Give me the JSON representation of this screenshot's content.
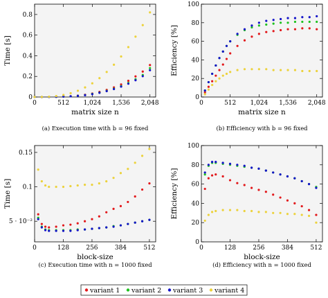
{
  "chart_data": [
    {
      "id": "a",
      "type": "scatter",
      "caption": "(a) Execution time with b = 96 fixed",
      "xlabel": "matrix size n",
      "ylabel": "Time [s]",
      "xlim": [
        0,
        2150
      ],
      "ylim": [
        0,
        0.9
      ],
      "xticks": [
        0,
        512,
        1024,
        1536,
        2048
      ],
      "xtick_labels": [
        "0",
        "512",
        "1,024",
        "1,536",
        "2,048"
      ],
      "yticks": [
        0,
        0.2,
        0.4,
        0.6,
        0.8
      ],
      "ytick_labels": [
        "0",
        "0.2",
        "0.4",
        "0.6",
        "0.8"
      ],
      "grid": false,
      "series": [
        {
          "name": "variant 1",
          "x": [
            0,
            128,
            256,
            384,
            512,
            640,
            768,
            896,
            1024,
            1152,
            1280,
            1408,
            1536,
            1664,
            1792,
            1920,
            2048
          ],
          "y": [
            0,
            0,
            0.001,
            0.002,
            0.004,
            0.008,
            0.014,
            0.022,
            0.034,
            0.05,
            0.069,
            0.093,
            0.122,
            0.157,
            0.2,
            0.247,
            0.31
          ]
        },
        {
          "name": "variant 2",
          "x": [
            0,
            128,
            256,
            384,
            512,
            640,
            768,
            896,
            1024,
            1152,
            1280,
            1408,
            1536,
            1664,
            1792,
            1920,
            2048
          ],
          "y": [
            0,
            0,
            0.001,
            0.002,
            0.004,
            0.007,
            0.012,
            0.019,
            0.03,
            0.043,
            0.06,
            0.081,
            0.106,
            0.136,
            0.172,
            0.213,
            0.28
          ]
        },
        {
          "name": "variant 3",
          "x": [
            0,
            128,
            256,
            384,
            512,
            640,
            768,
            896,
            1024,
            1152,
            1280,
            1408,
            1536,
            1664,
            1792,
            1920,
            2048
          ],
          "y": [
            0,
            0,
            0.001,
            0.002,
            0.004,
            0.007,
            0.011,
            0.018,
            0.028,
            0.041,
            0.057,
            0.077,
            0.101,
            0.129,
            0.163,
            0.202,
            0.26
          ]
        },
        {
          "name": "variant 4",
          "x": [
            0,
            128,
            256,
            384,
            512,
            640,
            768,
            896,
            1024,
            1152,
            1280,
            1408,
            1536,
            1664,
            1792,
            1920,
            2048
          ],
          "y": [
            0,
            0.001,
            0.003,
            0.009,
            0.02,
            0.037,
            0.061,
            0.093,
            0.133,
            0.183,
            0.243,
            0.313,
            0.393,
            0.484,
            0.585,
            0.697,
            0.82
          ]
        }
      ]
    },
    {
      "id": "b",
      "type": "scatter",
      "caption": "(b) Efficiency with b = 96 fixed",
      "xlabel": "matrix size n",
      "ylabel": "Efficiency [%]",
      "xlim": [
        0,
        2150
      ],
      "ylim": [
        0,
        100
      ],
      "xticks": [
        0,
        512,
        1024,
        1536,
        2048
      ],
      "xtick_labels": [
        "0",
        "512",
        "1,024",
        "1,536",
        "2,048"
      ],
      "yticks": [
        0,
        20,
        40,
        60,
        80,
        100
      ],
      "ytick_labels": [
        "0",
        "20",
        "40",
        "60",
        "80",
        "100"
      ],
      "grid": false,
      "series": [
        {
          "name": "variant 1",
          "x": [
            64,
            128,
            192,
            256,
            320,
            384,
            448,
            512,
            640,
            768,
            896,
            1024,
            1152,
            1280,
            1408,
            1536,
            1664,
            1792,
            1920,
            2048
          ],
          "y": [
            5,
            11,
            17,
            23,
            29,
            35,
            41,
            47,
            55,
            61,
            65,
            68,
            70,
            71,
            72,
            73,
            73,
            74,
            74,
            73
          ]
        },
        {
          "name": "variant 2",
          "x": [
            64,
            128,
            192,
            256,
            320,
            384,
            448,
            512,
            640,
            768,
            896,
            1024,
            1152,
            1280,
            1408,
            1536,
            1664,
            1792,
            1920,
            2048
          ],
          "y": [
            7,
            16,
            25,
            34,
            42,
            49,
            55,
            60,
            67,
            72,
            75,
            77,
            78,
            79,
            80,
            80,
            81,
            81,
            81,
            81
          ]
        },
        {
          "name": "variant 3",
          "x": [
            64,
            128,
            192,
            256,
            320,
            384,
            448,
            512,
            640,
            768,
            896,
            1024,
            1152,
            1280,
            1408,
            1536,
            1664,
            1792,
            1920,
            2048
          ],
          "y": [
            7,
            16,
            25,
            34,
            42,
            49,
            55,
            60,
            68,
            73,
            77,
            80,
            82,
            83,
            84,
            85,
            85,
            86,
            86,
            87
          ]
        },
        {
          "name": "variant 4",
          "x": [
            64,
            128,
            192,
            256,
            320,
            384,
            448,
            512,
            640,
            768,
            896,
            1024,
            1152,
            1280,
            1408,
            1536,
            1664,
            1792,
            1920,
            2048
          ],
          "y": [
            3,
            8,
            13,
            17,
            20,
            23,
            25,
            27,
            29,
            30,
            30,
            30,
            30,
            29,
            29,
            29,
            29,
            28,
            28,
            28
          ]
        }
      ]
    },
    {
      "id": "c",
      "type": "scatter",
      "caption": "(c) Execution time with n = 1000 fixed",
      "xlabel": "block-size",
      "ylabel": "Time [s]",
      "xlim": [
        0,
        540
      ],
      "ylim": [
        0.02,
        0.16
      ],
      "xticks": [
        0,
        128,
        256,
        384,
        512
      ],
      "xtick_labels": [
        "0",
        "128",
        "256",
        "384",
        "512"
      ],
      "yticks": [
        0.05,
        0.1,
        0.15
      ],
      "ytick_labels": [
        "5 · 10⁻²",
        "0.1",
        "0.15"
      ],
      "grid": false,
      "series": [
        {
          "name": "variant 1",
          "x": [
            16,
            32,
            48,
            64,
            96,
            128,
            160,
            192,
            224,
            256,
            288,
            320,
            352,
            384,
            416,
            448,
            480,
            512
          ],
          "y": [
            0.06,
            0.046,
            0.042,
            0.041,
            0.042,
            0.044,
            0.045,
            0.047,
            0.05,
            0.053,
            0.057,
            0.063,
            0.068,
            0.072,
            0.078,
            0.086,
            0.096,
            0.105
          ]
        },
        {
          "name": "variant 2",
          "x": [
            16,
            32,
            48,
            64,
            96,
            128,
            160,
            192,
            224,
            256,
            288,
            320,
            352,
            384,
            416,
            448,
            480,
            512
          ],
          "y": [
            0.055,
            0.042,
            0.038,
            0.037,
            0.037,
            0.037,
            0.037,
            0.038,
            0.038,
            0.039,
            0.04,
            0.041,
            0.043,
            0.044,
            0.046,
            0.048,
            0.05,
            0.052
          ]
        },
        {
          "name": "variant 3",
          "x": [
            16,
            32,
            48,
            64,
            96,
            128,
            160,
            192,
            224,
            256,
            288,
            320,
            352,
            384,
            416,
            448,
            480,
            512
          ],
          "y": [
            0.053,
            0.041,
            0.037,
            0.036,
            0.036,
            0.036,
            0.036,
            0.037,
            0.038,
            0.039,
            0.04,
            0.041,
            0.042,
            0.044,
            0.046,
            0.048,
            0.05,
            0.052
          ]
        },
        {
          "name": "variant 4",
          "x": [
            16,
            32,
            48,
            64,
            96,
            128,
            160,
            192,
            224,
            256,
            288,
            320,
            352,
            384,
            416,
            448,
            480,
            512
          ],
          "y": [
            0.125,
            0.108,
            0.102,
            0.1,
            0.1,
            0.1,
            0.101,
            0.102,
            0.103,
            0.103,
            0.105,
            0.108,
            0.113,
            0.12,
            0.126,
            0.135,
            0.145,
            0.155
          ]
        }
      ]
    },
    {
      "id": "d",
      "type": "scatter",
      "caption": "(d) Efficiency with n = 1000 fixed",
      "xlabel": "block-size",
      "ylabel": "Efficiency [%]",
      "xlim": [
        0,
        540
      ],
      "ylim": [
        0,
        100
      ],
      "xticks": [
        0,
        128,
        256,
        384,
        512
      ],
      "xtick_labels": [
        "0",
        "128",
        "256",
        "384",
        "512"
      ],
      "yticks": [
        0,
        20,
        40,
        60,
        80,
        100
      ],
      "ytick_labels": [
        "0",
        "20",
        "40",
        "60",
        "80",
        "100"
      ],
      "grid": false,
      "series": [
        {
          "name": "variant 1",
          "x": [
            16,
            32,
            48,
            64,
            96,
            128,
            160,
            192,
            224,
            256,
            288,
            320,
            352,
            384,
            416,
            448,
            480,
            512
          ],
          "y": [
            55,
            66,
            69,
            70,
            68,
            64,
            61,
            59,
            56,
            54,
            52,
            49,
            46,
            43,
            40,
            37,
            33,
            28
          ]
        },
        {
          "name": "variant 2",
          "x": [
            16,
            32,
            48,
            64,
            96,
            128,
            160,
            192,
            224,
            256,
            288,
            320,
            352,
            384,
            416,
            448,
            480,
            512
          ],
          "y": [
            70,
            79,
            82,
            82,
            81,
            80,
            79,
            78,
            77,
            76,
            74,
            72,
            70,
            68,
            66,
            63,
            60,
            57
          ]
        },
        {
          "name": "variant 3",
          "x": [
            16,
            32,
            48,
            64,
            96,
            128,
            160,
            192,
            224,
            256,
            288,
            320,
            352,
            384,
            416,
            448,
            480,
            512
          ],
          "y": [
            72,
            80,
            83,
            83,
            82,
            81,
            80,
            79,
            77,
            76,
            74,
            72,
            70,
            68,
            66,
            63,
            60,
            56
          ]
        },
        {
          "name": "variant 4",
          "x": [
            16,
            32,
            48,
            64,
            96,
            128,
            160,
            192,
            224,
            256,
            288,
            320,
            352,
            384,
            416,
            448,
            480,
            512
          ],
          "y": [
            22,
            28,
            31,
            32,
            33,
            33,
            33,
            32,
            32,
            31,
            31,
            30,
            30,
            29,
            29,
            28,
            27,
            20
          ]
        }
      ]
    }
  ],
  "legend": {
    "placement": "bottom-center",
    "items": [
      {
        "name": "variant 1",
        "color": "#e2191c"
      },
      {
        "name": "variant 2",
        "color": "#1fc21f"
      },
      {
        "name": "variant 3",
        "color": "#1414c8"
      },
      {
        "name": "variant 4",
        "color": "#ecd23c"
      }
    ]
  },
  "colors": {
    "variant 1": "#e2191c",
    "variant 2": "#1fc21f",
    "variant 3": "#1414c8",
    "variant 4": "#ecd23c",
    "plot_background": "#f4f4f4"
  }
}
